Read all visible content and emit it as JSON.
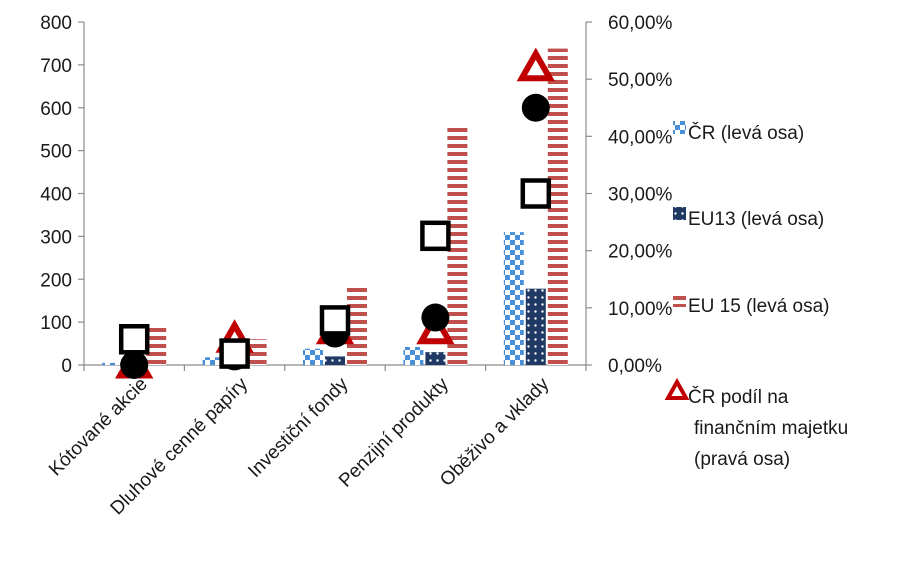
{
  "chart_data": {
    "type": "bar",
    "title": "",
    "categories": [
      "Kótované akcie",
      "Dluhové cenné papíry",
      "Investiční fondy",
      "Penzijní produkty",
      "Oběživo a vklady"
    ],
    "y_left": {
      "min": 0,
      "max": 800,
      "step": 100,
      "tick_labels": [
        "0",
        "100",
        "200",
        "300",
        "400",
        "500",
        "600",
        "700",
        "800"
      ]
    },
    "y_right": {
      "min": 0,
      "max": 0.6,
      "step": 0.1,
      "tick_labels": [
        "0,00%",
        "10,00%",
        "20,00%",
        "30,00%",
        "40,00%",
        "50,00%",
        "60,00%"
      ]
    },
    "series": [
      {
        "name": "ČR (levá osa)",
        "kind": "bar",
        "axis": "left",
        "pattern": "checker-blue",
        "values": [
          5,
          18,
          38,
          42,
          310
        ]
      },
      {
        "name": "EU13 (levá osa)",
        "kind": "bar",
        "axis": "left",
        "pattern": "dots-navy",
        "values": [
          3,
          3,
          20,
          30,
          178
        ]
      },
      {
        "name": "EU 15 (levá osa)",
        "kind": "bar",
        "axis": "left",
        "pattern": "stripes-red",
        "values": [
          95,
          60,
          188,
          560,
          738
        ]
      },
      {
        "name": "ČR podíl na finančním majetku (pravá osa)",
        "kind": "marker",
        "marker": "triangle",
        "axis": "right",
        "color": "#c00000",
        "values": [
          0.0,
          0.045,
          0.06,
          0.06,
          0.52
        ]
      },
      {
        "name": "",
        "kind": "marker",
        "marker": "circle",
        "axis": "right",
        "color": "#000000",
        "values": [
          0.0,
          0.015,
          0.055,
          0.083,
          0.45
        ]
      },
      {
        "name": "",
        "kind": "marker",
        "marker": "square",
        "axis": "right",
        "color": "#000000",
        "values": [
          0.045,
          0.02,
          0.078,
          0.226,
          0.3
        ]
      }
    ],
    "legend": {
      "placement": "right",
      "entries": [
        {
          "lines": [
            "ČR (levá osa)"
          ],
          "pattern": "checker-blue"
        },
        {
          "lines": [
            "EU13 (levá osa)"
          ],
          "pattern": "dots-navy"
        },
        {
          "lines": [
            "EU 15 (levá osa)"
          ],
          "pattern": "stripes-red"
        },
        {
          "lines": [
            "ČR podíl na",
            "finančním majetku",
            "(pravá osa)"
          ],
          "pattern": "triangle-red"
        }
      ]
    },
    "grid": false
  }
}
